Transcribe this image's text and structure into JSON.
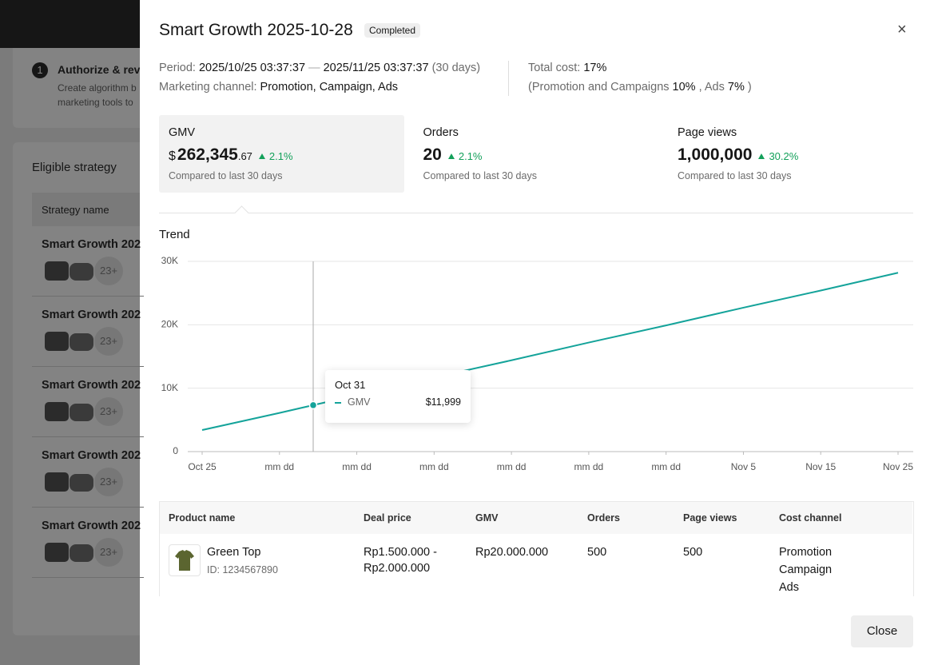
{
  "background": {
    "step_number": "1",
    "step_title": "Authorize & rev",
    "step_desc": [
      "Create algorithm b",
      "marketing tools to"
    ],
    "section_title": "Eligible strategy",
    "column_header": "Strategy name",
    "rows": [
      {
        "name": "Smart Growth 202",
        "count": "23+"
      },
      {
        "name": "Smart Growth 202",
        "count": "23+"
      },
      {
        "name": "Smart Growth 202",
        "count": "23+"
      },
      {
        "name": "Smart Growth 202",
        "count": "23+"
      },
      {
        "name": "Smart Growth 202",
        "count": "23+"
      }
    ]
  },
  "drawer": {
    "title": "Smart Growth 2025-10-28",
    "status": "Completed",
    "close_icon": "×",
    "info": {
      "period_label": "Period:",
      "period_start": "2025/10/25 03:37:37",
      "period_sep": "—",
      "period_end": "2025/11/25 03:37:37",
      "period_days": "(30 days)",
      "channel_label": "Marketing channel:",
      "channel_value": "Promotion, Campaign, Ads",
      "cost_label": "Total cost:",
      "cost_value": "17%",
      "cost_detail_open": "(Promotion and Campaigns",
      "cost_detail_pc": "10%",
      "cost_detail_ads_label": ", Ads",
      "cost_detail_ads": "7%",
      "cost_detail_close": ")"
    },
    "metrics": [
      {
        "name": "GMV",
        "currency": "$",
        "value": "262,345",
        "decimals": ".67",
        "change": "2.1%",
        "note": "Compared to last 30 days"
      },
      {
        "name": "Orders",
        "value": "20",
        "change": "2.1%",
        "note": "Compared to last 30 days"
      },
      {
        "name": "Page views",
        "value": "1,000,000",
        "change": "30.2%",
        "note": "Compared to last 30 days"
      }
    ],
    "table": {
      "headers": [
        "Product name",
        "Deal price",
        "GMV",
        "Orders",
        "Page views",
        "Cost channel"
      ],
      "rows": [
        {
          "name": "Green Top",
          "id": "ID: 1234567890",
          "price": [
            "Rp1.500.000 -",
            "Rp2.000.000"
          ],
          "gmv": "Rp20.000.000",
          "orders": "500",
          "page_views": "500",
          "channels": [
            "Promotion",
            "Campaign",
            "Ads"
          ]
        }
      ]
    },
    "close_button": "Close"
  },
  "chart_data": {
    "type": "line",
    "title": "Trend",
    "categories": [
      "Oct 25",
      "mm dd",
      "mm dd",
      "mm dd",
      "mm dd",
      "mm dd",
      "mm dd",
      "Nov 5",
      "Nov 15",
      "Nov 25"
    ],
    "series": [
      {
        "name": "GMV",
        "color": "#14a39a",
        "values": [
          3400,
          6100,
          8900,
          11700,
          14400,
          17200,
          19900,
          22700,
          25400,
          28200
        ]
      }
    ],
    "ylim": [
      0,
      30000
    ],
    "yticks": [
      0,
      {
        "value": 10000,
        "label": "10K"
      },
      {
        "value": 20000,
        "label": "20K"
      },
      {
        "value": 30000,
        "label": "30K"
      }
    ],
    "grid": true,
    "tooltip": {
      "date": "Oct 31",
      "series": "GMV",
      "value": "$11,999"
    }
  }
}
